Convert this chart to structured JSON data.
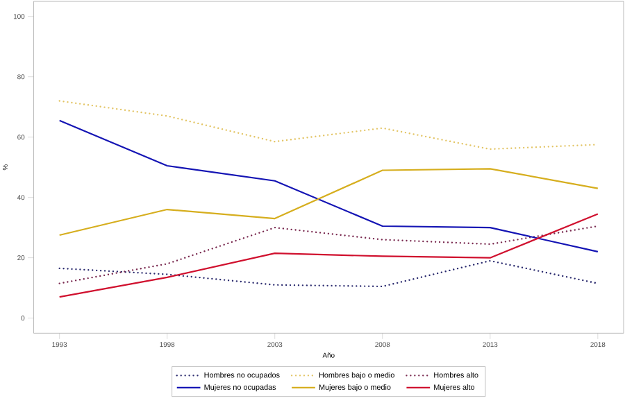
{
  "chart_data": {
    "type": "line",
    "xlabel": "Año",
    "ylabel": "%",
    "x": [
      1993,
      1998,
      2003,
      2008,
      2013,
      2018
    ],
    "xlim": [
      1991.8,
      2019.2
    ],
    "xticks": [
      1993,
      1998,
      2003,
      2008,
      2013,
      2018
    ],
    "ylim": [
      -5,
      105
    ],
    "yticks": [
      0,
      20,
      40,
      60,
      80,
      100
    ],
    "grid": false,
    "legend": "bottom",
    "marker": "none",
    "series": [
      {
        "name": "Hombres no ocupados",
        "color": "#2a2a6e",
        "line_style": "dotted",
        "values": [
          16.5,
          14.5,
          11,
          10.5,
          19,
          11.5
        ]
      },
      {
        "name": "Hombres bajo o medio",
        "color": "#e3c566",
        "line_style": "dotted",
        "values": [
          72,
          67,
          58.5,
          63,
          56,
          57.5
        ]
      },
      {
        "name": "Hombres alto",
        "color": "#7a2a50",
        "line_style": "dotted",
        "values": [
          11.5,
          18,
          30,
          26,
          24.5,
          30.5
        ]
      },
      {
        "name": "Mujeres no ocupadas",
        "color": "#1414b4",
        "line_style": "solid",
        "values": [
          65.5,
          50.5,
          45.5,
          30.5,
          30,
          22
        ]
      },
      {
        "name": "Mujeres bajo o medio",
        "color": "#d6ae1e",
        "line_style": "solid",
        "values": [
          27.5,
          36,
          33,
          49,
          49.5,
          43
        ]
      },
      {
        "name": "Mujeres alto",
        "color": "#d0102e",
        "line_style": "solid",
        "values": [
          7,
          13.5,
          21.5,
          20.5,
          20,
          34.5
        ]
      }
    ]
  }
}
